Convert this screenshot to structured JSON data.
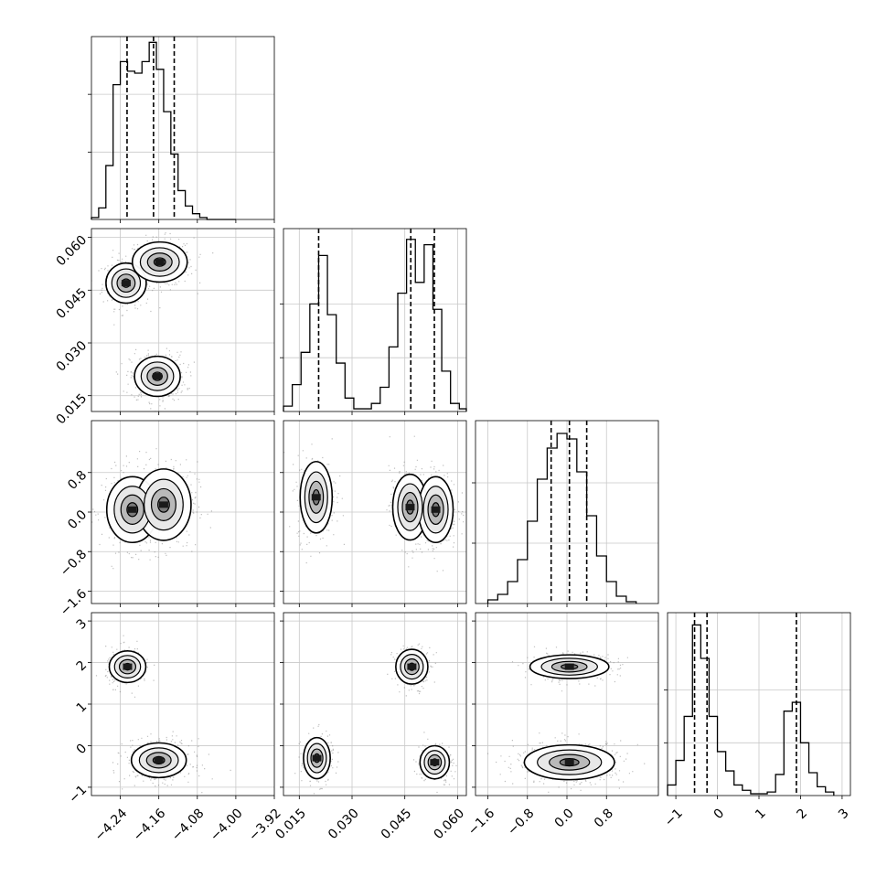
{
  "chart_data": {
    "type": "corner",
    "grid": true,
    "parameters": [
      {
        "range": [
          -4.3,
          -3.92
        ],
        "ticks": [
          -4.24,
          -4.16,
          -4.08,
          -4.0,
          -3.92
        ],
        "tick_labels": [
          "−4.24",
          "−4.16",
          "−4.08",
          "−4.00",
          "−3.92"
        ],
        "histogram": {
          "bin_edges": [
            -4.3,
            -4.285,
            -4.27,
            -4.255,
            -4.24,
            -4.225,
            -4.21,
            -4.195,
            -4.18,
            -4.165,
            -4.15,
            -4.135,
            -4.12,
            -4.105,
            -4.09,
            -4.075,
            -4.06,
            -4.045,
            -4.03,
            -4.015,
            -4.0
          ],
          "counts": [
            1,
            6,
            28,
            70,
            82,
            77,
            76,
            82,
            92,
            78,
            56,
            34,
            15,
            7,
            3,
            1,
            0,
            0,
            0,
            0
          ],
          "ymax": 95,
          "yticks": [
            35,
            65
          ]
        },
        "quantiles": [
          -4.226,
          -4.171,
          -4.128
        ]
      },
      {
        "range": [
          0.0105,
          0.0625
        ],
        "ticks": [
          0.015,
          0.03,
          0.045,
          0.06
        ],
        "tick_labels": [
          "0.015",
          "0.030",
          "0.045",
          "0.060"
        ],
        "histogram": {
          "bin_edges": [
            0.0105,
            0.013,
            0.0155,
            0.018,
            0.0205,
            0.023,
            0.0255,
            0.028,
            0.0305,
            0.033,
            0.0355,
            0.038,
            0.0405,
            0.043,
            0.0455,
            0.048,
            0.0505,
            0.053,
            0.0555,
            0.058,
            0.0605,
            0.0625
          ],
          "counts": [
            2,
            10,
            22,
            40,
            58,
            36,
            18,
            5,
            1,
            1,
            3,
            9,
            24,
            44,
            64,
            48,
            62,
            38,
            15,
            3,
            1
          ],
          "ymax": 68,
          "yticks": [
            20,
            40
          ]
        },
        "quantiles": [
          0.0205,
          0.0467,
          0.0534
        ]
      },
      {
        "range": [
          -1.85,
          1.85
        ],
        "ticks": [
          -1.6,
          -0.8,
          0.0,
          0.8
        ],
        "tick_labels": [
          "−1.6",
          "−0.8",
          "0.0",
          "0.8"
        ],
        "histogram": {
          "bin_edges": [
            -1.6,
            -1.4,
            -1.2,
            -1.0,
            -0.8,
            -0.6,
            -0.4,
            -0.2,
            0.0,
            0.2,
            0.4,
            0.6,
            0.8,
            1.0,
            1.2,
            1.4
          ],
          "counts": [
            2,
            5,
            12,
            24,
            45,
            68,
            85,
            93,
            90,
            72,
            48,
            26,
            12,
            4,
            1
          ],
          "ymax": 100,
          "yticks": [
            33,
            66
          ]
        },
        "quantiles": [
          -0.32,
          0.05,
          0.4
        ]
      },
      {
        "range": [
          -1.2,
          3.2
        ],
        "ticks": [
          -1,
          0,
          1,
          2,
          3
        ],
        "tick_labels": [
          "−1",
          "0",
          "1",
          "2",
          "3"
        ],
        "histogram": {
          "bin_edges": [
            -1.2,
            -1.0,
            -0.8,
            -0.6,
            -0.4,
            -0.2,
            0.0,
            0.2,
            0.4,
            0.6,
            0.8,
            1.0,
            1.2,
            1.4,
            1.6,
            1.8,
            2.0,
            2.2,
            2.4,
            2.6,
            2.8
          ],
          "counts": [
            6,
            20,
            45,
            97,
            78,
            45,
            25,
            14,
            6,
            3,
            1,
            1,
            2,
            12,
            48,
            53,
            30,
            13,
            5,
            2
          ],
          "ymax": 104,
          "yticks": [
            30,
            60
          ]
        },
        "quantiles": [
          -0.55,
          -0.25,
          1.9
        ]
      }
    ],
    "pairs": [
      {
        "row": 1,
        "col": 0,
        "clusters": [
          {
            "cx": -4.228,
            "cy": 0.047,
            "rx": 0.022,
            "ry": 0.003,
            "rot": 0,
            "w": 0.8
          },
          {
            "cx": -4.158,
            "cy": 0.053,
            "rx": 0.03,
            "ry": 0.003,
            "rot": 0,
            "w": 0.9
          },
          {
            "cx": -4.163,
            "cy": 0.0205,
            "rx": 0.025,
            "ry": 0.003,
            "rot": 0,
            "w": 1.0
          }
        ]
      },
      {
        "row": 2,
        "col": 0,
        "clusters": [
          {
            "cx": -4.215,
            "cy": 0.05,
            "rx": 0.028,
            "ry": 0.35,
            "rot": 0,
            "w": 0.9
          },
          {
            "cx": -4.15,
            "cy": 0.15,
            "rx": 0.03,
            "ry": 0.38,
            "rot": 0,
            "w": 1.0
          }
        ]
      },
      {
        "row": 2,
        "col": 1,
        "clusters": [
          {
            "cx": 0.0198,
            "cy": 0.3,
            "rx": 0.0024,
            "ry": 0.38,
            "rot": 0,
            "w": 0.8
          },
          {
            "cx": 0.0465,
            "cy": 0.1,
            "rx": 0.0026,
            "ry": 0.35,
            "rot": 0,
            "w": 0.8
          },
          {
            "cx": 0.0538,
            "cy": 0.05,
            "rx": 0.0026,
            "ry": 0.35,
            "rot": 0,
            "w": 0.8
          }
        ]
      },
      {
        "row": 3,
        "col": 0,
        "clusters": [
          {
            "cx": -4.225,
            "cy": 1.9,
            "rx": 0.02,
            "ry": 0.2,
            "rot": 0,
            "w": 0.6
          },
          {
            "cx": -4.16,
            "cy": -0.35,
            "rx": 0.03,
            "ry": 0.22,
            "rot": 0,
            "w": 1.2
          }
        ]
      },
      {
        "row": 3,
        "col": 1,
        "clusters": [
          {
            "cx": 0.02,
            "cy": -0.3,
            "rx": 0.002,
            "ry": 0.26,
            "rot": 0,
            "w": 0.6
          },
          {
            "cx": 0.047,
            "cy": 1.9,
            "rx": 0.0024,
            "ry": 0.22,
            "rot": 0,
            "w": 0.6
          },
          {
            "cx": 0.0535,
            "cy": -0.4,
            "rx": 0.0022,
            "ry": 0.21,
            "rot": 0,
            "w": 0.6
          }
        ]
      },
      {
        "row": 3,
        "col": 2,
        "clusters": [
          {
            "cx": 0.05,
            "cy": 1.9,
            "rx": 0.42,
            "ry": 0.15,
            "rot": 0,
            "w": 0.7
          },
          {
            "cx": 0.05,
            "cy": -0.4,
            "rx": 0.48,
            "ry": 0.22,
            "rot": 0,
            "w": 1.3
          }
        ]
      }
    ]
  }
}
